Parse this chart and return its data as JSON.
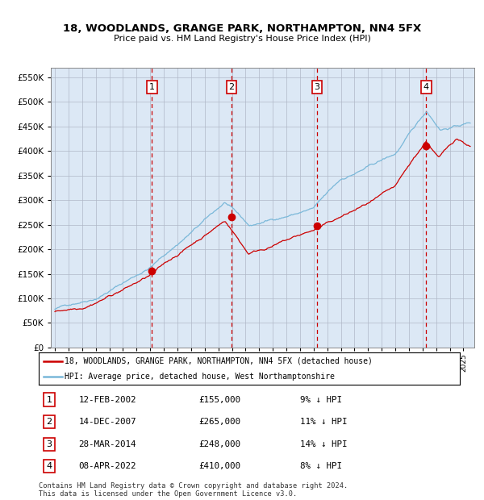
{
  "title": "18, WOODLANDS, GRANGE PARK, NORTHAMPTON, NN4 5FX",
  "subtitle": "Price paid vs. HM Land Registry's House Price Index (HPI)",
  "legend_line1": "18, WOODLANDS, GRANGE PARK, NORTHAMPTON, NN4 5FX (detached house)",
  "legend_line2": "HPI: Average price, detached house, West Northamptonshire",
  "hpi_color": "#7ab8d9",
  "price_color": "#cc0000",
  "plot_bg": "#dce8f5",
  "grid_color": "#b0b8c8",
  "vline_color": "#cc0000",
  "box_color": "#cc0000",
  "footer_line1": "Contains HM Land Registry data © Crown copyright and database right 2024.",
  "footer_line2": "This data is licensed under the Open Government Licence v3.0.",
  "transactions": [
    {
      "num": 1,
      "date": "12-FEB-2002",
      "price": 155000,
      "pct": "9%",
      "year": 2002.12
    },
    {
      "num": 2,
      "date": "14-DEC-2007",
      "price": 265000,
      "pct": "11%",
      "year": 2007.96
    },
    {
      "num": 3,
      "date": "28-MAR-2014",
      "price": 248000,
      "pct": "14%",
      "year": 2014.24
    },
    {
      "num": 4,
      "date": "08-APR-2022",
      "price": 410000,
      "pct": "8%",
      "year": 2022.27
    }
  ],
  "ylim": [
    0,
    570000
  ],
  "yticks": [
    0,
    50000,
    100000,
    150000,
    200000,
    250000,
    300000,
    350000,
    400000,
    450000,
    500000,
    550000
  ],
  "xlim_start": 1994.7,
  "xlim_end": 2025.8
}
